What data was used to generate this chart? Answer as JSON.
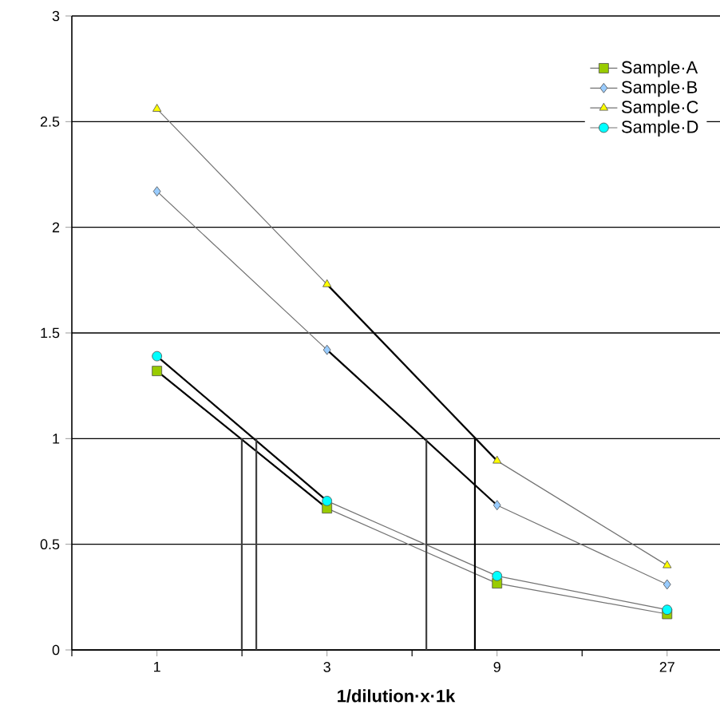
{
  "chart_data": {
    "type": "line",
    "xlabel": "1/dilution·x·1k",
    "log": "x",
    "xlim": [
      0.577,
      38
    ],
    "xticks": [
      {
        "value": 0.577,
        "label": null
      },
      1,
      {
        "value": 1.732,
        "label": null
      },
      3,
      {
        "value": 5.196,
        "label": null
      },
      9,
      {
        "value": 15.59,
        "label": null
      },
      27
    ],
    "ylim": [
      0,
      3
    ],
    "yticks": [
      0,
      0.5,
      1,
      1.5,
      2,
      2.5,
      3
    ],
    "grid": "y",
    "legend": "top right",
    "series": [
      {
        "name": "Sample·A",
        "color": "#99cc00",
        "marker": "square",
        "x": [
          1,
          3,
          9,
          27
        ],
        "values": [
          1.32,
          0.67,
          0.315,
          0.17
        ]
      },
      {
        "name": "Sample·B",
        "color": "#99ccff",
        "marker": "diamond",
        "x": [
          1,
          3,
          9,
          27
        ],
        "values": [
          2.17,
          1.42,
          0.685,
          0.31
        ]
      },
      {
        "name": "Sample·C",
        "color": "#ffff00",
        "marker": "triangle",
        "x": [
          1,
          3,
          9,
          27
        ],
        "values": [
          2.56,
          1.73,
          0.895,
          0.4
        ]
      },
      {
        "name": "Sample·D",
        "color": "#00ffff",
        "marker": "circle",
        "x": [
          1,
          3,
          9,
          27
        ],
        "values": [
          1.39,
          0.705,
          0.35,
          0.19
        ]
      },
      {
        "color": "#000000",
        "marker": "none",
        "x": [
          1,
          3
        ],
        "values": [
          1.32,
          0.67
        ]
      },
      {
        "color": "#000000",
        "marker": "none",
        "x": [
          1,
          3
        ],
        "values": [
          1.39,
          0.705
        ]
      },
      {
        "color": "#000000",
        "marker": "none",
        "x": [
          3,
          9
        ],
        "values": [
          1.42,
          0.685
        ]
      },
      {
        "color": "#000000",
        "marker": "none",
        "x": [
          3,
          9
        ],
        "values": [
          1.73,
          0.895
        ]
      },
      {
        "color": "#404040",
        "marker": "none",
        "x": [
          1.73,
          1.73
        ],
        "values": [
          0,
          1
        ]
      },
      {
        "color": "#404040",
        "marker": "none",
        "x": [
          1.9,
          1.9
        ],
        "values": [
          0,
          1
        ]
      },
      {
        "color": "#404040",
        "marker": "none",
        "x": [
          5.7,
          5.7
        ],
        "values": [
          0,
          1
        ]
      },
      {
        "color": "#000000",
        "marker": "none",
        "x": [
          7.8,
          7.8
        ],
        "values": [
          0,
          1
        ]
      }
    ]
  }
}
